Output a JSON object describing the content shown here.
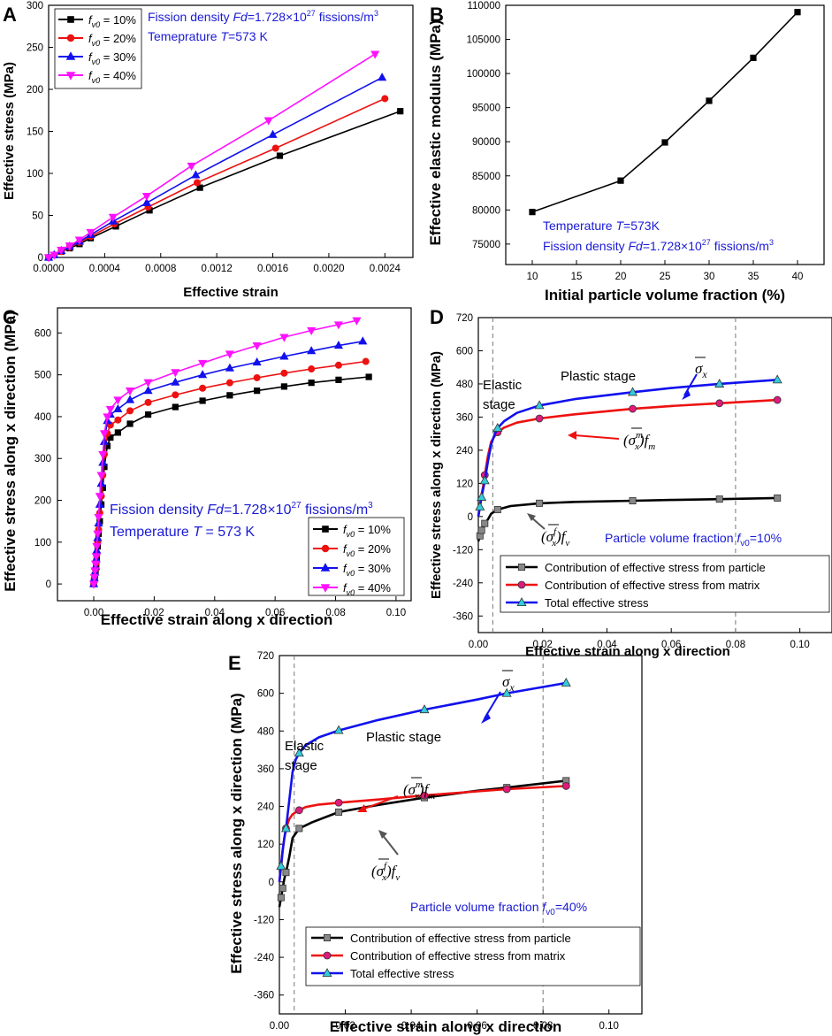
{
  "chart_data": [
    {
      "panel": "A",
      "type": "line",
      "xlabel": "Effective strain",
      "ylabel": "Effective stress (MPa)",
      "xlim": [
        0,
        0.0026
      ],
      "ylim": [
        0,
        300
      ],
      "xticks": [
        "0.0000",
        "0.0004",
        "0.0008",
        "0.0012",
        "0.0016",
        "0.0020",
        "0.0024"
      ],
      "yticks": [
        "0",
        "50",
        "100",
        "150",
        "200",
        "250",
        "300"
      ],
      "annotations": [
        "Fission density Fd=1.728×10^27 fissions/m^3",
        "Temeprature T=573 K"
      ],
      "series": [
        {
          "name": "f_v0 = 10%",
          "color": "#000000",
          "marker": "square",
          "x": [
            0,
            4e-05,
            9e-05,
            0.00015,
            0.00022,
            0.0003,
            0.00048,
            0.00072,
            0.00108,
            0.00165,
            0.00251
          ],
          "y": [
            0,
            3,
            7,
            11,
            16,
            23,
            37,
            56,
            83,
            121,
            174
          ]
        },
        {
          "name": "f_v0 = 20%",
          "color": "#ee1111",
          "marker": "circle",
          "x": [
            0,
            4e-05,
            9e-05,
            0.00015,
            0.00022,
            0.0003,
            0.00047,
            0.00071,
            0.00106,
            0.00162,
            0.0024
          ],
          "y": [
            0,
            3,
            7,
            12,
            18,
            25,
            40,
            60,
            89,
            130,
            189
          ]
        },
        {
          "name": "f_v0 = 30%",
          "color": "#1111ee",
          "marker": "triangle",
          "x": [
            0,
            4e-05,
            9e-05,
            0.00015,
            0.00022,
            0.0003,
            0.00046,
            0.0007,
            0.00105,
            0.0016,
            0.00238
          ],
          "y": [
            0,
            3,
            8,
            13,
            19,
            27,
            43,
            65,
            98,
            146,
            214
          ]
        },
        {
          "name": "f_v0 = 40%",
          "color": "#ff11ff",
          "marker": "triangle-down",
          "x": [
            0,
            4e-05,
            9e-05,
            0.00015,
            0.00022,
            0.0003,
            0.00046,
            0.0007,
            0.00102,
            0.00157,
            0.00233
          ],
          "y": [
            0,
            3,
            9,
            14,
            21,
            30,
            48,
            73,
            109,
            163,
            242
          ]
        }
      ]
    },
    {
      "panel": "B",
      "type": "line",
      "xlabel": "Initial particle volume fraction (%)",
      "ylabel": "Effective elastic modulus (MPa)",
      "xlim": [
        7,
        43
      ],
      "ylim": [
        72000,
        110000
      ],
      "xticks": [
        "10",
        "15",
        "20",
        "25",
        "30",
        "35",
        "40"
      ],
      "yticks": [
        "75000",
        "80000",
        "85000",
        "90000",
        "95000",
        "100000",
        "105000",
        "110000"
      ],
      "annotations": [
        "Temperature T=573K",
        "Fission density Fd=1.728×10^27 fissions/m^3"
      ],
      "series": [
        {
          "name": "modulus",
          "color": "#000000",
          "marker": "square",
          "x": [
            10,
            20,
            25,
            30,
            35,
            40
          ],
          "y": [
            79700,
            84300,
            89900,
            96000,
            102300,
            109000
          ]
        }
      ]
    },
    {
      "panel": "C",
      "type": "line",
      "xlabel": "Effective strain along x direction",
      "ylabel": "Effective stress along x direction (MPa)",
      "xlim": [
        -0.012,
        0.105
      ],
      "ylim": [
        -40,
        660
      ],
      "xticks": [
        "0.00",
        "0.02",
        "0.04",
        "0.06",
        "0.08",
        "0.10"
      ],
      "yticks": [
        "0",
        "100",
        "200",
        "300",
        "400",
        "500",
        "600"
      ],
      "annotations": [
        "Fission density Fd=1.728×10^27 fissions/m^3",
        "Temperature T = 573 K"
      ],
      "series": [
        {
          "name": "f_v0=10%",
          "color": "#000000",
          "marker": "square",
          "x": [
            0,
            0.0002,
            0.0004,
            0.0006,
            0.0008,
            0.001,
            0.0013,
            0.0016,
            0.002,
            0.0025,
            0.003,
            0.0035,
            0.0045,
            0.0055,
            0.008,
            0.012,
            0.018,
            0.027,
            0.036,
            0.045,
            0.054,
            0.063,
            0.072,
            0.081,
            0.091
          ],
          "y": [
            0,
            10,
            20,
            30,
            40,
            60,
            90,
            120,
            150,
            190,
            230,
            280,
            330,
            350,
            362,
            383,
            405,
            423,
            438,
            451,
            462,
            472,
            481,
            488,
            495
          ]
        },
        {
          "name": "f_v0=20%",
          "color": "#ee1111",
          "marker": "circle",
          "x": [
            0,
            0.0002,
            0.0004,
            0.0006,
            0.0008,
            0.001,
            0.0013,
            0.0016,
            0.002,
            0.0025,
            0.003,
            0.0035,
            0.0045,
            0.0055,
            0.008,
            0.012,
            0.018,
            0.027,
            0.036,
            0.045,
            0.054,
            0.063,
            0.072,
            0.081,
            0.09
          ],
          "y": [
            0,
            12,
            24,
            36,
            50,
            70,
            100,
            130,
            170,
            210,
            260,
            310,
            360,
            380,
            392,
            414,
            434,
            452,
            468,
            481,
            493,
            504,
            514,
            523,
            532
          ]
        },
        {
          "name": "f_v0=30%",
          "color": "#1111ee",
          "marker": "triangle",
          "x": [
            0,
            0.0002,
            0.0004,
            0.0006,
            0.0008,
            0.001,
            0.0013,
            0.0016,
            0.002,
            0.0025,
            0.003,
            0.0035,
            0.0045,
            0.0055,
            0.008,
            0.012,
            0.018,
            0.027,
            0.036,
            0.045,
            0.054,
            0.063,
            0.072,
            0.081,
            0.089
          ],
          "y": [
            0,
            14,
            28,
            42,
            60,
            80,
            110,
            145,
            190,
            240,
            290,
            340,
            390,
            405,
            418,
            440,
            462,
            482,
            500,
            516,
            530,
            544,
            557,
            570,
            580
          ]
        },
        {
          "name": "f_v0=40%",
          "color": "#ff11ff",
          "marker": "triangle-down",
          "x": [
            0,
            0.0002,
            0.0004,
            0.0006,
            0.0008,
            0.001,
            0.0013,
            0.0016,
            0.002,
            0.0025,
            0.003,
            0.0035,
            0.0045,
            0.0055,
            0.008,
            0.012,
            0.018,
            0.027,
            0.036,
            0.045,
            0.054,
            0.063,
            0.072,
            0.081,
            0.087
          ],
          "y": [
            0,
            16,
            32,
            48,
            66,
            90,
            120,
            160,
            210,
            260,
            310,
            360,
            400,
            418,
            440,
            462,
            482,
            506,
            528,
            550,
            570,
            590,
            606,
            620,
            630
          ]
        }
      ]
    },
    {
      "panel": "D",
      "type": "line",
      "xlabel": "Effective strain along x direction",
      "ylabel": "Effective stress along x direction (MPa)",
      "xlim": [
        0,
        0.11
      ],
      "ylim": [
        -420,
        720
      ],
      "xticks": [
        "0.00",
        "0.02",
        "0.04",
        "0.06",
        "0.08",
        "0.10"
      ],
      "yticks": [
        "-360",
        "-240",
        "-120",
        "0",
        "120",
        "240",
        "360",
        "480",
        "600",
        "720"
      ],
      "vlines": [
        0.0045,
        0.08
      ],
      "labels": {
        "elastic1": "Elastic",
        "elastic2": "stage",
        "plastic": "Plastic stage",
        "total": "σ̄x",
        "matrix": "(σ̄x^m)fm",
        "particle": "(σ̄x^f)fv"
      },
      "annotations": [
        "Particle volume fraction f_v0=10%"
      ],
      "series": [
        {
          "name": "Contribution of effective stress from particle",
          "color": "#000000",
          "marker": "square",
          "marker_fill": "#888888",
          "x": [
            0,
            0.0005,
            0.001,
            0.0015,
            0.002,
            0.003,
            0.004,
            0.006,
            0.01,
            0.019,
            0.03,
            0.048,
            0.06,
            0.075,
            0.093
          ],
          "y": [
            -90,
            -70,
            -50,
            -35,
            -25,
            -10,
            10,
            25,
            38,
            48,
            53,
            57,
            60,
            63,
            67
          ],
          "markers_at": [
            0.0005,
            0.001,
            0.002,
            0.006,
            0.019,
            0.048,
            0.075,
            0.093
          ]
        },
        {
          "name": "Contribution of effective stress from matrix",
          "color": "#ee1111",
          "marker": "circle",
          "marker_fill": "#e0197a",
          "x": [
            0,
            0.0005,
            0.001,
            0.0015,
            0.002,
            0.003,
            0.004,
            0.005,
            0.006,
            0.008,
            0.012,
            0.019,
            0.03,
            0.048,
            0.06,
            0.075,
            0.093
          ],
          "y": [
            0,
            40,
            80,
            110,
            150,
            220,
            270,
            290,
            305,
            322,
            340,
            355,
            370,
            390,
            400,
            410,
            422
          ],
          "markers_at": [
            0.002,
            0.006,
            0.019,
            0.048,
            0.075,
            0.093
          ]
        },
        {
          "name": "Total effective stress",
          "color": "#1111ee",
          "marker": "triangle",
          "marker_fill": "#33ccdd",
          "x": [
            0,
            0.0005,
            0.001,
            0.0015,
            0.002,
            0.003,
            0.004,
            0.005,
            0.006,
            0.008,
            0.012,
            0.019,
            0.03,
            0.048,
            0.06,
            0.075,
            0.093
          ],
          "y": [
            0,
            35,
            70,
            100,
            130,
            200,
            260,
            295,
            320,
            345,
            375,
            402,
            425,
            450,
            465,
            480,
            495
          ],
          "markers_at": [
            0.0005,
            0.001,
            0.002,
            0.006,
            0.019,
            0.048,
            0.075,
            0.093
          ]
        }
      ]
    },
    {
      "panel": "E",
      "type": "line",
      "xlabel": "Effective strain along x direction",
      "ylabel": "Effective stress along x direction (MPa)",
      "xlim": [
        0,
        0.11
      ],
      "ylim": [
        -420,
        720
      ],
      "xticks": [
        "0.00",
        "0.02",
        "0.04",
        "0.06",
        "0.08",
        "0.10"
      ],
      "yticks": [
        "-360",
        "-240",
        "-120",
        "0",
        "120",
        "240",
        "360",
        "480",
        "600",
        "720"
      ],
      "vlines": [
        0.0045,
        0.08
      ],
      "labels": {
        "elastic1": "Elastic",
        "elastic2": "stage",
        "plastic": "Plastic stage",
        "total": "σ̄x",
        "matrix": "(σ̄x^m)fm",
        "particle": "(σ̄x^f)fv"
      },
      "annotations": [
        "Particle volume fraction f_v0=40%"
      ],
      "series": [
        {
          "name": "Contribution of effective stress from particle",
          "color": "#000000",
          "marker": "square",
          "marker_fill": "#888888",
          "x": [
            0,
            0.0005,
            0.001,
            0.0015,
            0.002,
            0.003,
            0.004,
            0.006,
            0.01,
            0.018,
            0.03,
            0.044,
            0.06,
            0.069,
            0.087
          ],
          "y": [
            -80,
            -50,
            -20,
            10,
            30,
            80,
            140,
            170,
            190,
            222,
            245,
            268,
            290,
            300,
            322
          ],
          "markers_at": [
            0.0005,
            0.001,
            0.002,
            0.006,
            0.018,
            0.044,
            0.069,
            0.087
          ]
        },
        {
          "name": "Contribution of effective stress from matrix",
          "color": "#ee1111",
          "marker": "circle",
          "marker_fill": "#e0197a",
          "x": [
            0,
            0.0005,
            0.001,
            0.0015,
            0.002,
            0.003,
            0.004,
            0.005,
            0.006,
            0.008,
            0.012,
            0.018,
            0.03,
            0.044,
            0.06,
            0.069,
            0.087
          ],
          "y": [
            0,
            50,
            100,
            140,
            170,
            200,
            215,
            222,
            228,
            238,
            246,
            252,
            262,
            275,
            288,
            295,
            305
          ],
          "markers_at": [
            0.002,
            0.006,
            0.018,
            0.044,
            0.069,
            0.087
          ]
        },
        {
          "name": "Total effective stress",
          "color": "#1111ee",
          "marker": "triangle",
          "marker_fill": "#33ccdd",
          "x": [
            0,
            0.0005,
            0.001,
            0.0015,
            0.002,
            0.003,
            0.004,
            0.005,
            0.006,
            0.008,
            0.012,
            0.018,
            0.03,
            0.044,
            0.06,
            0.069,
            0.087
          ],
          "y": [
            0,
            50,
            100,
            140,
            170,
            260,
            350,
            390,
            410,
            435,
            460,
            482,
            515,
            548,
            580,
            600,
            633
          ],
          "markers_at": [
            0.0005,
            0.002,
            0.006,
            0.018,
            0.044,
            0.069,
            0.087
          ]
        }
      ]
    }
  ]
}
